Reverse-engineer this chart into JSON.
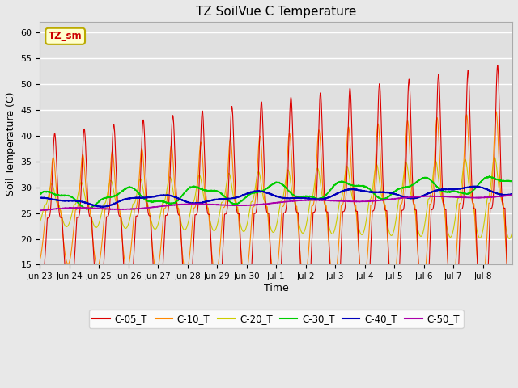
{
  "title": "TZ SoilVue C Temperature",
  "xlabel": "Time",
  "ylabel": "Soil Temperature (C)",
  "ylim": [
    15,
    62
  ],
  "yticks": [
    15,
    20,
    25,
    30,
    35,
    40,
    45,
    50,
    55,
    60
  ],
  "fig_bg_color": "#e8e8e8",
  "plot_bg_color": "#e0e0e0",
  "legend_label": "TZ_sm",
  "legend_bg": "#ffffcc",
  "legend_border": "#bbaa00",
  "series_colors": {
    "C-05_T": "#dd0000",
    "C-10_T": "#ff8800",
    "C-20_T": "#cccc00",
    "C-30_T": "#00cc00",
    "C-40_T": "#0000bb",
    "C-50_T": "#aa00aa"
  },
  "tick_labels": [
    "Jun 23",
    "Jun 24",
    "Jun 25",
    "Jun 26",
    "Jun 27",
    "Jun 28",
    "Jun 29",
    "Jun 30",
    "Jul 1",
    "Jul 2",
    "Jul 3",
    "Jul 4",
    "Jul 5",
    "Jul 6",
    "Jul 7",
    "Jul 8"
  ],
  "n_days": 16,
  "figsize": [
    6.4,
    4.8
  ],
  "dpi": 100
}
